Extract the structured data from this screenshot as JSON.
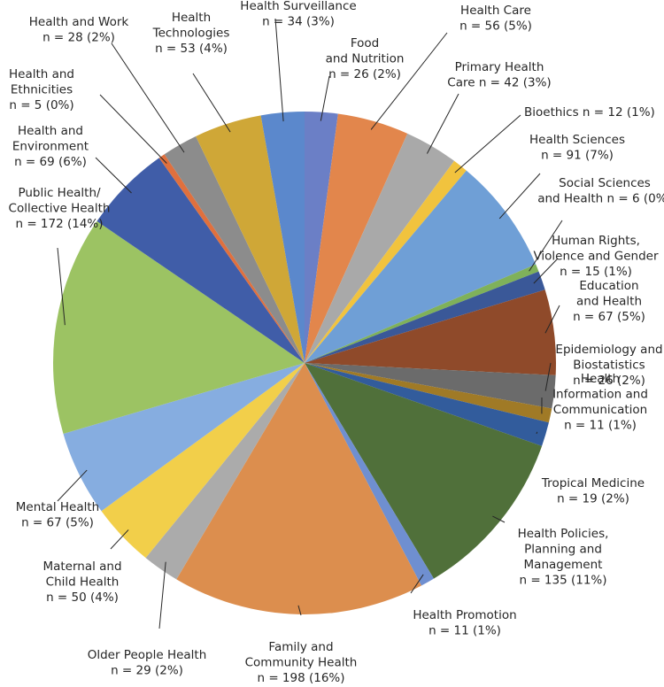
{
  "chart_data": {
    "type": "pie",
    "start": "12 o'clock",
    "direction": "clockwise",
    "legend": "none",
    "slices": [
      {
        "name": "Food and Nutrition",
        "value": 26,
        "label": [
          "Food",
          "and Nutrition",
          "n = 26 (2%)"
        ],
        "color": "#6b7fc6"
      },
      {
        "name": "Health Care",
        "value": 56,
        "label": [
          "Health Care",
          "n = 56 (5%)"
        ],
        "color": "#e2864c"
      },
      {
        "name": "Primary Health Care",
        "value": 42,
        "label": [
          "Primary Health",
          "Care n = 42 (3%)"
        ],
        "color": "#a9a9a9"
      },
      {
        "name": "Bioethics",
        "value": 12,
        "label": [
          "Bioethics n = 12 (1%)"
        ],
        "color": "#f1c33e"
      },
      {
        "name": "Health Sciences",
        "value": 91,
        "label": [
          "Health Sciences",
          "n = 91 (7%)"
        ],
        "color": "#6f9fd6"
      },
      {
        "name": "Social Sciences and Health",
        "value": 6,
        "label": [
          "Social Sciences",
          "and Health n = 6 (0%)"
        ],
        "color": "#7fb15a"
      },
      {
        "name": "Human Rights, Violence and Gender",
        "value": 15,
        "label": [
          "Human Rights,",
          "Violence and Gender",
          "n = 15 (1%)"
        ],
        "color": "#3a5898"
      },
      {
        "name": "Education and Health",
        "value": 67,
        "label": [
          "Education",
          "and Health",
          "n = 67 (5%)"
        ],
        "color": "#8f4a2a"
      },
      {
        "name": "Epidemiology and Biostatistics",
        "value": 26,
        "label": [
          "Epidemiology and",
          "Biostatistics",
          "n = 26 (2%)"
        ],
        "color": "#6b6b6b"
      },
      {
        "name": "Health Information and Communication",
        "value": 11,
        "label": [
          "Health",
          "Information and",
          "Communication",
          "n = 11 (1%)"
        ],
        "color": "#a07a26"
      },
      {
        "name": "Tropical Medicine",
        "value": 19,
        "label": [
          "Tropical Medicine",
          "n = 19 (2%)"
        ],
        "color": "#325c9c"
      },
      {
        "name": "Health Policies, Planning and Management",
        "value": 135,
        "label": [
          "Health Policies,",
          "Planning and",
          "Management",
          "n = 135 (11%)"
        ],
        "color": "#50703a"
      },
      {
        "name": "Health Promotion",
        "value": 11,
        "label": [
          "Health Promotion",
          "n = 11 (1%)"
        ],
        "color": "#6f8fd0"
      },
      {
        "name": "Family and Community Health",
        "value": 198,
        "label": [
          "Family and",
          "Community Health",
          "n = 198 (16%)"
        ],
        "color": "#dc8e4e"
      },
      {
        "name": "Older People Health",
        "value": 29,
        "label": [
          "Older People Health",
          "n = 29 (2%)"
        ],
        "color": "#ababab"
      },
      {
        "name": "Maternal and Child Health",
        "value": 50,
        "label": [
          "Maternal and",
          "Child Health",
          "n = 50 (4%)"
        ],
        "color": "#f2cf4a"
      },
      {
        "name": "Mental Health",
        "value": 67,
        "label": [
          "Mental Health",
          "n = 67 (5%)"
        ],
        "color": "#86ade0"
      },
      {
        "name": "Public Health/Collective Health",
        "value": 172,
        "label": [
          "Public Health/",
          "Collective Health",
          "n = 172 (14%)"
        ],
        "color": "#9cc363"
      },
      {
        "name": "Health and Environment",
        "value": 69,
        "label": [
          "Health and",
          "Environment",
          "n = 69 (6%)"
        ],
        "color": "#405da8"
      },
      {
        "name": "Health and Ethnicities",
        "value": 5,
        "label": [
          "Health and",
          "Ethnicities",
          "n = 5 (0%)"
        ],
        "color": "#e0703e"
      },
      {
        "name": "Health and Work",
        "value": 28,
        "label": [
          "Health and Work",
          "n = 28 (2%)"
        ],
        "color": "#8c8c8c"
      },
      {
        "name": "Health Technologies",
        "value": 53,
        "label": [
          "Health",
          "Technologies",
          "n = 53 (4%)"
        ],
        "color": "#cfa737"
      },
      {
        "name": "Health Surveillance",
        "value": 34,
        "label": [
          "Health Surveillance",
          "n = 34 (3%)"
        ],
        "color": "#5b88cc"
      }
    ]
  }
}
